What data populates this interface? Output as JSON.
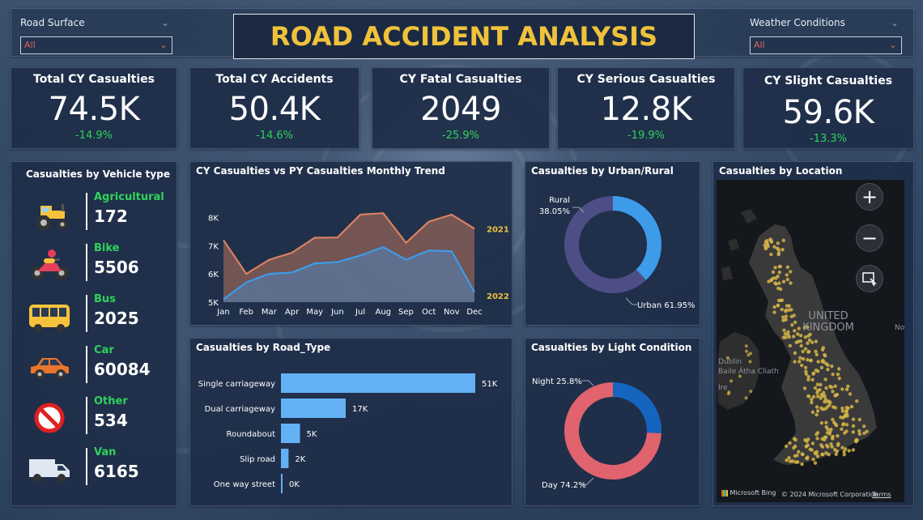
{
  "header": {
    "title": "ROAD ACCIDENT ANALYSIS"
  },
  "filters": {
    "road_surface": {
      "label": "Road Surface",
      "value": "All"
    },
    "weather": {
      "label": "Weather Conditions",
      "value": "All"
    }
  },
  "kpis": [
    {
      "title": "Total CY Casualties",
      "value": "74.5K",
      "change": "-14.9%"
    },
    {
      "title": "Total CY Accidents",
      "value": "50.4K",
      "change": "-14.6%"
    },
    {
      "title": "CY Fatal Casualties",
      "value": "2049",
      "change": "-25.9%"
    },
    {
      "title": "CY Serious Casualties",
      "value": "12.8K",
      "change": "-19.9%"
    },
    {
      "title": "CY Slight Casualties",
      "value": "59.6K",
      "change": "-13.3%"
    }
  ],
  "vehicle": {
    "title": "Casualties by Vehicle type",
    "items": [
      {
        "name": "Agricultural",
        "value": "172",
        "icon": "tractor-icon"
      },
      {
        "name": "Bike",
        "value": "5506",
        "icon": "motorbike-icon"
      },
      {
        "name": "Bus",
        "value": "2025",
        "icon": "bus-icon"
      },
      {
        "name": "Car",
        "value": "60084",
        "icon": "car-icon"
      },
      {
        "name": "Other",
        "value": "534",
        "icon": "no-entry-icon"
      },
      {
        "name": "Van",
        "value": "6165",
        "icon": "van-icon"
      }
    ]
  },
  "trend": {
    "title": "CY Casualties vs PY Casualties Monthly Trend",
    "chart_data": {
      "type": "area",
      "categories": [
        "Jan",
        "Feb",
        "Mar",
        "Apr",
        "May",
        "Jun",
        "Jul",
        "Aug",
        "Sep",
        "Oct",
        "Nov",
        "Dec"
      ],
      "series": [
        {
          "name": "2021",
          "color": "#d9825f",
          "values": [
            7200,
            6000,
            6500,
            6750,
            7280,
            7290,
            8100,
            8150,
            7100,
            7850,
            8100,
            7600
          ]
        },
        {
          "name": "2022",
          "color": "#3d9be9",
          "values": [
            5100,
            5700,
            6000,
            6050,
            6370,
            6420,
            6650,
            6950,
            6500,
            6830,
            6800,
            5350
          ]
        }
      ],
      "yticks": [
        "5K",
        "6K",
        "7K",
        "8K"
      ],
      "ylim": [
        5000,
        8500
      ]
    }
  },
  "urban": {
    "title": "Casualties by Urban/Rural",
    "chart_data": {
      "type": "pie",
      "slices": [
        {
          "name": "Rural",
          "label": "Rural",
          "pct": "38.05%",
          "value": 38.05,
          "color": "#3d9be9"
        },
        {
          "name": "Urban",
          "label": "Urban 61.95%",
          "value": 61.95,
          "color": "#4e4e86"
        }
      ]
    }
  },
  "road_type": {
    "title": "Casualties by Road_Type",
    "chart_data": {
      "type": "bar",
      "categories": [
        "Single carriageway",
        "Dual carriageway",
        "Roundabout",
        "Slip road",
        "One way street"
      ],
      "values": [
        51,
        17,
        5,
        2,
        0
      ],
      "value_labels": [
        "51K",
        "17K",
        "5K",
        "2K",
        "0K"
      ],
      "color": "#64b0f4"
    }
  },
  "light": {
    "title": "Casualties by Light Condition",
    "chart_data": {
      "type": "pie",
      "slices": [
        {
          "name": "Night",
          "label": "Night 25.8%",
          "value": 25.8,
          "color": "#1565c0"
        },
        {
          "name": "Day",
          "label": "Day 74.2%",
          "value": 74.2,
          "color": "#e0636d"
        }
      ]
    }
  },
  "location": {
    "title": "Casualties by Location",
    "map": {
      "country_label": "UNITED KINGDOM",
      "labels": [
        "Dublin",
        "Baile Átha Cliath",
        "Ire",
        "No"
      ],
      "provider": "Microsoft Bing",
      "copyright": "© 2024 Microsoft Corporation",
      "terms": "Terms"
    }
  }
}
